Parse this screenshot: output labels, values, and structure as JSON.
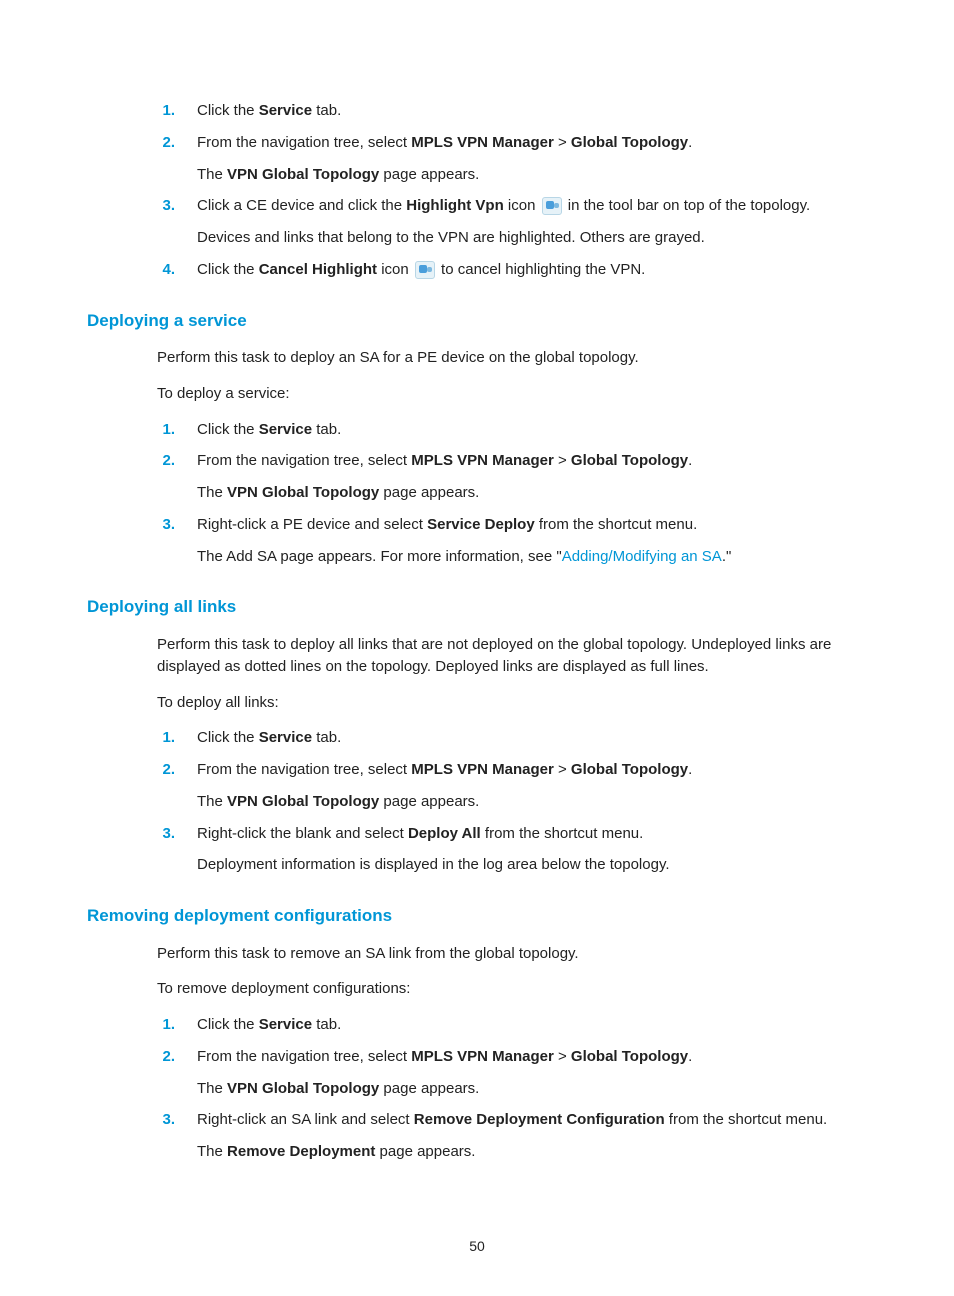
{
  "colors": {
    "accent": "#0096d6",
    "text": "#222222",
    "bg": "#ffffff"
  },
  "page_number": "50",
  "sections": [
    {
      "heading": null,
      "paras": [],
      "items": [
        {
          "n": "1.",
          "lines": [
            "Click the <b>Service</b> tab."
          ]
        },
        {
          "n": "2.",
          "lines": [
            "From the navigation tree, select <b>MPLS VPN Manager</b> > <b>Global Topology</b>.",
            "The <b>VPN Global Topology</b> page appears."
          ]
        },
        {
          "n": "3.",
          "lines": [
            "Click a CE device and click the <b>Highlight Vpn</b> icon {ICON} in the tool bar on top of the topology.",
            "Devices and links that belong to the VPN are highlighted. Others are grayed."
          ]
        },
        {
          "n": "4.",
          "lines": [
            "Click the <b>Cancel Highlight</b> icon {ICON} to cancel highlighting the VPN."
          ]
        }
      ]
    },
    {
      "heading": "Deploying a service",
      "paras": [
        "Perform this task to deploy an SA for a PE device on the global topology.",
        "To deploy a service:"
      ],
      "items": [
        {
          "n": "1.",
          "lines": [
            "Click the <b>Service</b> tab."
          ]
        },
        {
          "n": "2.",
          "lines": [
            "From the navigation tree, select <b>MPLS VPN Manager</b> > <b>Global Topology</b>.",
            "The <b>VPN Global Topology</b> page appears."
          ]
        },
        {
          "n": "3.",
          "lines": [
            "Right-click a PE device and select <b>Service Deploy</b> from the shortcut menu.",
            "The Add SA page appears. For more information, see \"<span class='link'>Adding/Modifying an SA</span>.\""
          ]
        }
      ]
    },
    {
      "heading": "Deploying all links",
      "paras": [
        "Perform this task to deploy all links that are not deployed on the global topology. Undeployed links are displayed as dotted lines on the topology. Deployed links are displayed as full lines.",
        "To deploy all links:"
      ],
      "items": [
        {
          "n": "1.",
          "lines": [
            "Click the <b>Service</b> tab."
          ]
        },
        {
          "n": "2.",
          "lines": [
            "From the navigation tree, select <b>MPLS VPN Manager</b> > <b>Global Topology</b>.",
            "The <b>VPN Global Topology</b> page appears."
          ]
        },
        {
          "n": "3.",
          "lines": [
            "Right-click the blank and select <b>Deploy All</b> from the shortcut menu.",
            "Deployment information is displayed in the log area below the topology."
          ]
        }
      ]
    },
    {
      "heading": "Removing deployment configurations",
      "paras": [
        "Perform this task to remove an SA link from the global topology.",
        "To remove deployment configurations:"
      ],
      "items": [
        {
          "n": "1.",
          "lines": [
            "Click the <b>Service</b> tab."
          ]
        },
        {
          "n": "2.",
          "lines": [
            "From the navigation tree, select <b>MPLS VPN Manager</b> > <b>Global Topology</b>.",
            "The <b>VPN Global Topology</b> page appears."
          ]
        },
        {
          "n": "3.",
          "lines": [
            "Right-click an SA link and select <b>Remove Deployment Configuration</b> from the shortcut menu.",
            "The <b>Remove Deployment</b> page appears."
          ]
        }
      ]
    }
  ]
}
